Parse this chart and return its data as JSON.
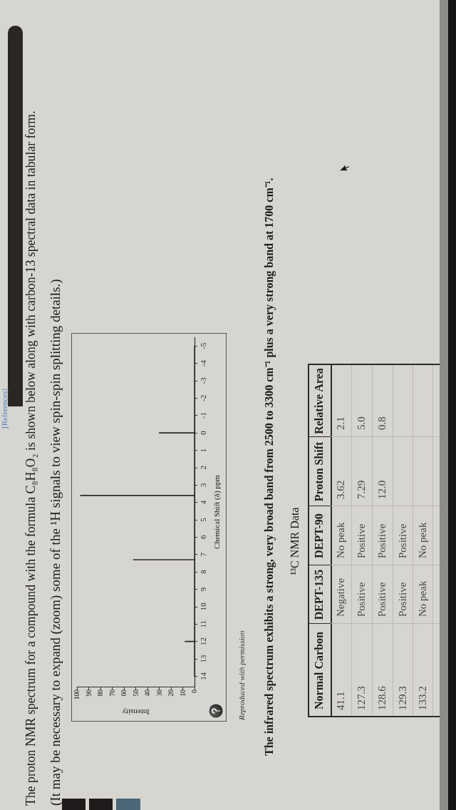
{
  "chart_data": {
    "type": "line",
    "title": "The proton NMR spectrum for a compound with the formula C₈H₈O₂ is shown below along with carbon-13 spectral data in tabular form.",
    "subtitle": "(It may be necessary to expand (zoom) some of the ¹H signals to view spin-spin splitting details.)",
    "xlabel": "Intensity",
    "ylabel": "Chemical Shift (δ) ppm",
    "x": [
      0,
      0,
      8,
      0,
      0,
      52,
      0,
      0,
      97,
      0,
      0,
      30,
      0,
      0
    ],
    "values": [
      14,
      12,
      12,
      12,
      7.3,
      7.3,
      7.3,
      3.6,
      3.6,
      3.6,
      0,
      0,
      0,
      -5
    ],
    "color": "#2b2b2b",
    "xlim": [
      100,
      0
    ],
    "xticks": [
      0,
      10,
      20,
      30,
      40,
      50,
      60,
      70,
      80,
      90,
      100
    ],
    "ylim": [
      14.6,
      -5.5
    ],
    "yticks": [
      14,
      13,
      12,
      11,
      10,
      9,
      8,
      7,
      6,
      5,
      4,
      3,
      2,
      1,
      0,
      -1,
      -2,
      -3,
      -4,
      -5
    ],
    "grid": false,
    "marker": "none",
    "line_style": "solid",
    "annotations": [
      "[References]",
      "Reproduced with permission",
      "The infrared spectrum exhibits a strong, very broad band from 2500 to 3300 cm⁻¹ plus a very strong band at 1700 cm⁻¹.",
      "¹³C NMR Data",
      "Normal Carbon",
      "DEPT-135",
      "DEPT-90",
      "Proton Shift",
      "Relative Area",
      "41.1",
      "Negative",
      "No peak",
      "3.62",
      "2.1",
      "127.3",
      "Positive",
      "Positive",
      "7.29",
      "5.0",
      "128.6",
      "Positive",
      "Positive",
      "12.0",
      "0.8",
      "129.3",
      "Positive",
      "Positive",
      "133.2",
      "No peak",
      "No peak"
    ]
  }
}
